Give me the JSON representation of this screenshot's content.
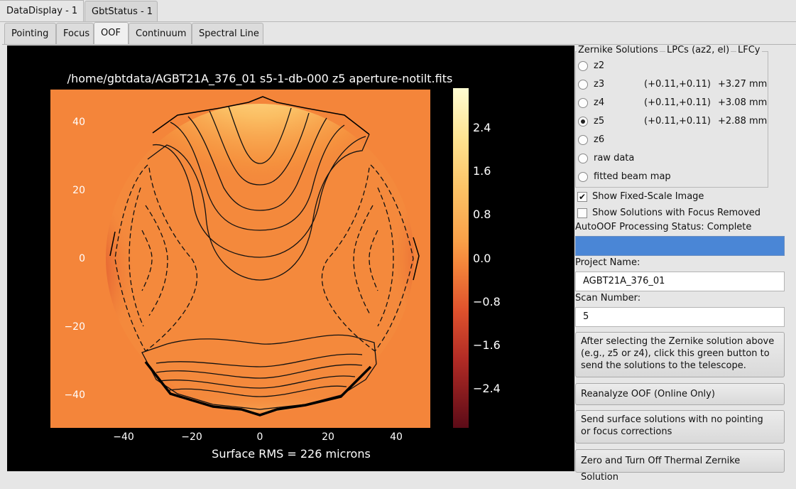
{
  "window_tabs": [
    {
      "label": "DataDisplay - 1",
      "active": true
    },
    {
      "label": "GbtStatus - 1",
      "active": false
    }
  ],
  "sub_tabs": [
    {
      "label": "Pointing",
      "active": false
    },
    {
      "label": "Focus",
      "active": false
    },
    {
      "label": "OOF",
      "active": true
    },
    {
      "label": "Continuum",
      "active": false
    },
    {
      "label": "Spectral Line",
      "active": false
    }
  ],
  "plot": {
    "title": "/home/gbtdata/AGBT21A_376_01 s5-1-db-000 z5 aperture-notilt.fits",
    "x_ticks": [
      "−40",
      "−20",
      "0",
      "20",
      "40"
    ],
    "y_ticks": [
      "40",
      "20",
      "0",
      "−20",
      "−40"
    ],
    "colorbar_ticks": [
      "2.4",
      "1.6",
      "0.8",
      "0.0",
      "−0.8",
      "−1.6",
      "−2.4"
    ],
    "footer": "Surface RMS = 226 microns"
  },
  "chart_data": {
    "type": "heatmap",
    "title": "/home/gbtdata/AGBT21A_376_01 s5-1-db-000 z5 aperture-notilt.fits",
    "xlim": [
      -50,
      50
    ],
    "ylim": [
      -50,
      50
    ],
    "x_ticks": [
      -40,
      -20,
      0,
      20,
      40
    ],
    "y_ticks": [
      -40,
      -20,
      0,
      20,
      40
    ],
    "colorbar": {
      "range": [
        -3.2,
        3.1
      ],
      "ticks": [
        -2.4,
        -1.6,
        -0.8,
        0.0,
        0.8,
        1.6,
        2.4
      ]
    },
    "annotation": "Surface RMS = 226 microns"
  },
  "zernike": {
    "group_title": "Zernike Solutions",
    "col_lpc": "LPCs (az2, el)",
    "col_lfc": "LFCy",
    "rows": [
      {
        "label": "z2",
        "lpc": "",
        "lfc": "",
        "selected": false
      },
      {
        "label": "z3",
        "lpc": "(+0.11,+0.11)",
        "lfc": "+3.27 mm",
        "selected": false
      },
      {
        "label": "z4",
        "lpc": "(+0.11,+0.11)",
        "lfc": "+3.08 mm",
        "selected": false
      },
      {
        "label": "z5",
        "lpc": "(+0.11,+0.11)",
        "lfc": "+2.88 mm",
        "selected": true
      },
      {
        "label": "z6",
        "lpc": "",
        "lfc": "",
        "selected": false
      },
      {
        "label": "raw data",
        "lpc": "",
        "lfc": "",
        "selected": false
      },
      {
        "label": "fitted beam map",
        "lpc": "",
        "lfc": "",
        "selected": false
      }
    ]
  },
  "options": {
    "fixed_scale_label": "Show Fixed-Scale Image",
    "fixed_scale_checked": true,
    "focus_removed_label": "Show Solutions with Focus Removed",
    "focus_removed_checked": false
  },
  "status": {
    "label": "AutoOOF Processing Status: Complete",
    "progress_fraction": 1.0,
    "progress_color": "#4a86d6"
  },
  "project": {
    "label": "Project Name:",
    "value": "AGBT21A_376_01"
  },
  "scan": {
    "label": "Scan Number:",
    "value": "5"
  },
  "buttons": {
    "send_solutions": [
      "After selecting the Zernike solution above",
      "(e.g., z5 or z4), click this green button to",
      "send the solutions to the telescope."
    ],
    "reanalyze": "Reanalyze OOF (Online Only)",
    "send_no_corrections": [
      "Send surface solutions with no pointing",
      "or focus corrections"
    ],
    "zero_thermal": "Zero and Turn Off Thermal Zernike Solution"
  }
}
